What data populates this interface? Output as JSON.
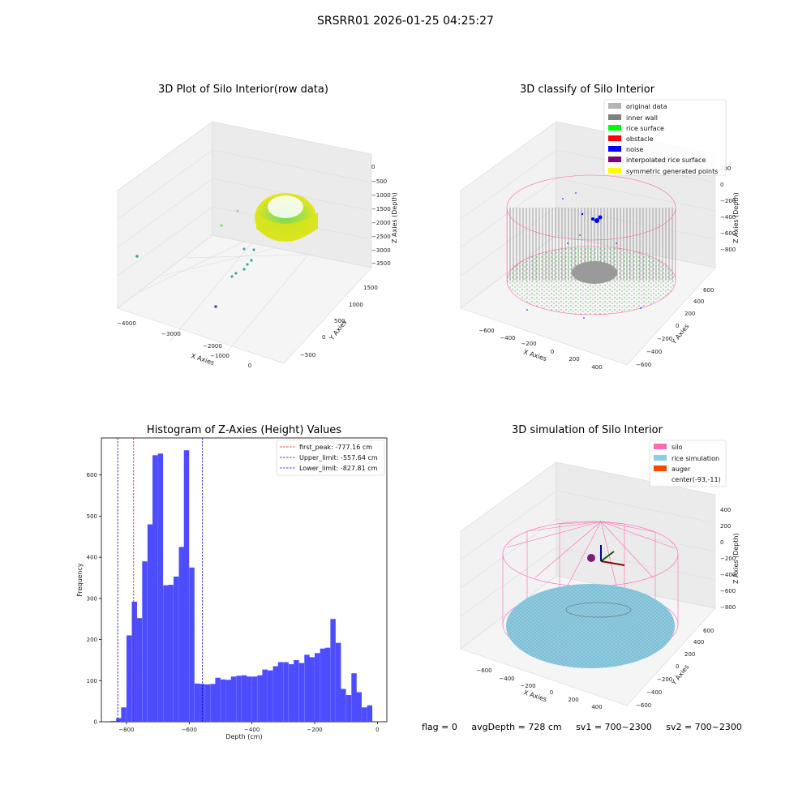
{
  "figure": {
    "title": "SRSRR01 2026-01-25 04:25:27",
    "status": {
      "flag": "flag = 0",
      "avg_depth": "avgDepth = 728 cm",
      "sv1": "sv1 = 700~2300",
      "sv2": "sv2 = 700~2300"
    }
  },
  "panels": {
    "raw": {
      "title": "3D Plot of Silo Interior(row data)",
      "xlabel": "X Axies",
      "ylabel": "Y Axies",
      "zlabel": "Z Axies (Depth)",
      "xticks": [
        "−4000",
        "−3000",
        "−2000",
        "−1000",
        "0"
      ],
      "yticks": [
        "−500",
        "0",
        "500",
        "1000",
        "1500"
      ],
      "zticks": [
        "0",
        "−500",
        "−1000",
        "−1500",
        "−2000",
        "−2500",
        "−3000",
        "−3500"
      ]
    },
    "classify": {
      "title": "3D classify of Silo Interior",
      "xlabel": "X Axies",
      "ylabel": "Y Axies",
      "zlabel": "Z Axies (Depth)",
      "xticks": [
        "−600",
        "−400",
        "−200",
        "0",
        "200",
        "400"
      ],
      "yticks": [
        "−600",
        "−400",
        "−200",
        "0",
        "200",
        "400",
        "600"
      ],
      "zticks": [
        "200",
        "0",
        "−200",
        "−400",
        "−600",
        "−800"
      ],
      "legend": [
        {
          "label": "original data",
          "color": "#b4b4b4"
        },
        {
          "label": "inner wall",
          "color": "#808080"
        },
        {
          "label": "rice surface",
          "color": "#00ff00"
        },
        {
          "label": "obstacle",
          "color": "#ff0000"
        },
        {
          "label": "noise",
          "color": "#0000ff"
        },
        {
          "label": "interpolated rice surface",
          "color": "#800080"
        },
        {
          "label": "symmetric generated points",
          "color": "#ffff00"
        }
      ]
    },
    "simulation": {
      "title": "3D simulation of Silo Interior",
      "xlabel": "X Axies",
      "ylabel": "Y Axies",
      "zlabel": "Z Axies (Depth)",
      "xticks": [
        "−600",
        "−400",
        "−200",
        "0",
        "200",
        "400"
      ],
      "yticks": [
        "−600",
        "−400",
        "−200",
        "0",
        "200",
        "400",
        "600"
      ],
      "zticks": [
        "400",
        "200",
        "0",
        "−200",
        "−400",
        "−600",
        "−800"
      ],
      "legend": [
        {
          "label": "silo",
          "color": "#ff69b4"
        },
        {
          "label": "rice simulation",
          "color": "#87ceeb"
        },
        {
          "label": "auger",
          "color": "#ff4500"
        },
        {
          "label": "center(-93,-11)",
          "color": "none"
        }
      ]
    }
  },
  "chart_data": {
    "type": "bar",
    "title": "Histogram of Z-Axies (Height) Values",
    "xlabel": "Depth (cm)",
    "ylabel": "Frequency",
    "xlim": [
      -880,
      30
    ],
    "ylim": [
      0,
      690
    ],
    "bin_width": 16.7,
    "xticks": [
      -800,
      -600,
      -400,
      -200,
      0
    ],
    "yticks": [
      0,
      100,
      200,
      300,
      400,
      500,
      600
    ],
    "bar_color": "#4d4dff",
    "bins_start": [
      -850,
      -833,
      -817,
      -800,
      -783,
      -767,
      -750,
      -733,
      -717,
      -700,
      -683,
      -667,
      -650,
      -633,
      -617,
      -600,
      -583,
      -567,
      -550,
      -533,
      -517,
      -500,
      -483,
      -467,
      -450,
      -433,
      -417,
      -400,
      -383,
      -367,
      -350,
      -333,
      -317,
      -300,
      -283,
      -267,
      -250,
      -233,
      -217,
      -200,
      -183,
      -167,
      -150,
      -133,
      -117,
      -100,
      -83,
      -67,
      -50,
      -33,
      -17,
      0
    ],
    "values": [
      2,
      9,
      35,
      210,
      292,
      252,
      390,
      480,
      648,
      652,
      332,
      333,
      353,
      425,
      660,
      375,
      93,
      92,
      91,
      92,
      107,
      103,
      102,
      110,
      112,
      113,
      110,
      110,
      113,
      127,
      125,
      135,
      145,
      145,
      140,
      150,
      143,
      163,
      157,
      167,
      178,
      180,
      250,
      192,
      80,
      65,
      118,
      72,
      35,
      40,
      0,
      0
    ],
    "legend_position": "top-right",
    "annotations": [
      {
        "label": "first_peak: -777.16 cm",
        "x": -777.16,
        "color": "#ff0000"
      },
      {
        "label": "Upper_limit: -557.64 cm",
        "x": -557.64,
        "color": "#0000cc"
      },
      {
        "label": "Lower_limit: -827.81 cm",
        "x": -827.81,
        "color": "#0000cc"
      }
    ]
  }
}
